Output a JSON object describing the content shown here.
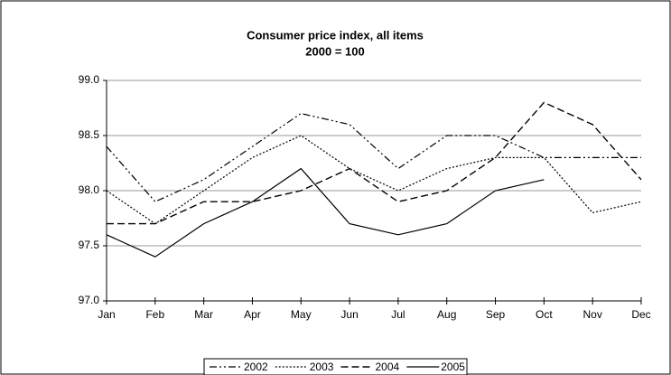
{
  "chart_data": {
    "type": "line",
    "title": "Consumer price index, all items",
    "subtitle": "2000 = 100",
    "categories": [
      "Jan",
      "Feb",
      "Mar",
      "Apr",
      "May",
      "Jun",
      "Jul",
      "Aug",
      "Sep",
      "Oct",
      "Nov",
      "Dec"
    ],
    "series": [
      {
        "name": "2002",
        "color": "#000000",
        "dash": "dash-dot-dot",
        "values": [
          98.4,
          97.9,
          98.1,
          98.4,
          98.7,
          98.6,
          98.2,
          98.5,
          98.5,
          98.3,
          98.3,
          98.3
        ]
      },
      {
        "name": "2003",
        "color": "#000000",
        "dash": "dotted",
        "values": [
          98.0,
          97.7,
          98.0,
          98.3,
          98.5,
          98.2,
          98.0,
          98.2,
          98.3,
          98.3,
          97.8,
          97.9
        ]
      },
      {
        "name": "2004",
        "color": "#000000",
        "dash": "dashed",
        "values": [
          97.7,
          97.7,
          97.9,
          97.9,
          98.0,
          98.2,
          97.9,
          98.0,
          98.3,
          98.8,
          98.6,
          98.1
        ]
      },
      {
        "name": "2005",
        "color": "#000000",
        "dash": "solid",
        "values": [
          97.6,
          97.4,
          97.7,
          97.9,
          98.2,
          97.7,
          97.6,
          97.7,
          98.0,
          98.1,
          null,
          null
        ]
      }
    ],
    "ylim": [
      97.0,
      99.0
    ],
    "yticks": [
      {
        "value": 97.0,
        "label": "97.0"
      },
      {
        "value": 97.5,
        "label": "97.5"
      },
      {
        "value": 98.0,
        "label": "98.0"
      },
      {
        "value": 98.5,
        "label": "98.5"
      },
      {
        "value": 99.0,
        "label": "99.0"
      }
    ],
    "grid": true,
    "legend": "bottom"
  }
}
